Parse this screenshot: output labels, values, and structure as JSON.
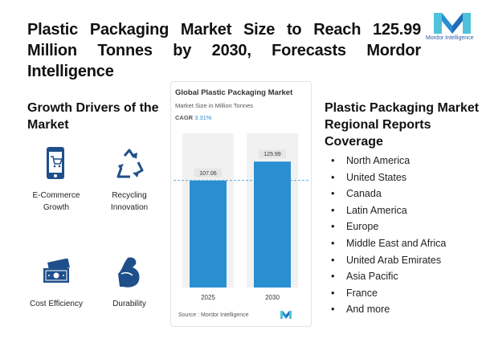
{
  "header": {
    "title": "Plastic Packaging Market Size to Reach 125.99 Million Tonnes by 2030, Forecasts Mordor Intelligence",
    "logo_text": "Mordor Intelligence"
  },
  "drivers": {
    "title": "Growth Drivers of the Market",
    "items": [
      {
        "label": "E-Commerce Growth",
        "icon": "smartphone-cart-icon"
      },
      {
        "label": "Recycling Innovation",
        "icon": "recycle-icon"
      },
      {
        "label": "Cost Efficiency",
        "icon": "cash-icon"
      },
      {
        "label": "Durability",
        "icon": "flexed-arm-icon"
      }
    ]
  },
  "chart_card": {
    "title": "Global Plastic Packaging Market",
    "subtitle": "Market Size in Million Tonnes",
    "cagr_label": "CAGR",
    "cagr_value": "3.31%",
    "source": "Source : Mordor Intelligence"
  },
  "chart_data": {
    "type": "bar",
    "title": "Global Plastic Packaging Market",
    "ylabel": "Market Size in Million Tonnes",
    "categories": [
      "2025",
      "2030"
    ],
    "values": [
      107.06,
      125.99
    ],
    "value_labels": [
      "107.06",
      "125.99"
    ],
    "ylim": [
      0,
      135
    ],
    "grid": false,
    "bar_color": "#2a8fd0"
  },
  "regions": {
    "title": "Plastic Packaging Market Regional Reports Coverage",
    "items": [
      "North America",
      "United States",
      "Canada",
      "Latin America",
      "Europe",
      "Middle East and Africa",
      "United Arab Emirates",
      "Asia Pacific",
      "France",
      "And more"
    ]
  },
  "colors": {
    "icon_blue": "#1f4f8b",
    "accent": "#2a8fd0",
    "logo_teal": "#4fc3d9"
  }
}
